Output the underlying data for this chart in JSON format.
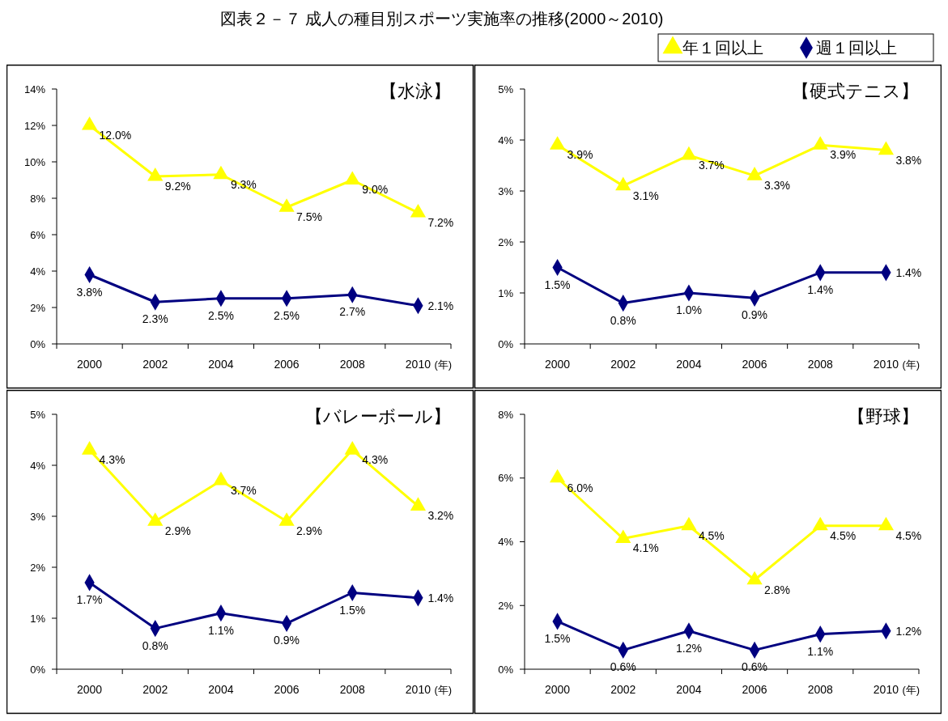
{
  "chart_data": [
    {
      "type": "line",
      "title": "【水泳】",
      "annotations": [
        "図表２－７ 成人の種目別スポーツ実施率の推移(2000～2010)"
      ],
      "xlabel": "(年)",
      "categories": [
        "2000",
        "2002",
        "2004",
        "2006",
        "2008",
        "2010"
      ],
      "ylim": [
        0,
        14
      ],
      "yticks": [
        {
          "value": 0,
          "label": "0%"
        },
        {
          "value": 2,
          "label": "2%"
        },
        {
          "value": 4,
          "label": "4%"
        },
        {
          "value": 6,
          "label": "6%"
        },
        {
          "value": 8,
          "label": "8%"
        },
        {
          "value": 10,
          "label": "10%"
        },
        {
          "value": 12,
          "label": "12%"
        },
        {
          "value": 14,
          "label": "14%"
        }
      ],
      "legend": "top right",
      "grid": false,
      "series": [
        {
          "name": "年１回以上",
          "color": "#ffff00",
          "marker": "triangle",
          "values": [
            12.0,
            9.2,
            9.3,
            7.5,
            9.0,
            7.2
          ],
          "value_labels": [
            "12.0%",
            "9.2%",
            "9.3%",
            "7.5%",
            "9.0%",
            "7.2%"
          ]
        },
        {
          "name": "週１回以上",
          "color": "#000080",
          "marker": "diamond",
          "values": [
            3.8,
            2.3,
            2.5,
            2.5,
            2.7,
            2.1
          ],
          "value_labels": [
            "3.8%",
            "2.3%",
            "2.5%",
            "2.5%",
            "2.7%",
            "2.1%"
          ]
        }
      ]
    },
    {
      "type": "line",
      "title": "【硬式テニス】",
      "xlabel": "(年)",
      "categories": [
        "2000",
        "2002",
        "2004",
        "2006",
        "2008",
        "2010"
      ],
      "ylim": [
        0,
        5
      ],
      "yticks": [
        {
          "value": 0,
          "label": "0%"
        },
        {
          "value": 1,
          "label": "1%"
        },
        {
          "value": 2,
          "label": "2%"
        },
        {
          "value": 3,
          "label": "3%"
        },
        {
          "value": 4,
          "label": "4%"
        },
        {
          "value": 5,
          "label": "5%"
        }
      ],
      "grid": false,
      "series": [
        {
          "color": "#ffff00",
          "marker": "triangle",
          "values": [
            3.9,
            3.1,
            3.7,
            3.3,
            3.9,
            3.8
          ],
          "value_labels": [
            "3.9%",
            "3.1%",
            "3.7%",
            "3.3%",
            "3.9%",
            "3.8%"
          ]
        },
        {
          "color": "#000080",
          "marker": "diamond",
          "values": [
            1.5,
            0.8,
            1.0,
            0.9,
            1.4,
            1.4
          ],
          "value_labels": [
            "1.5%",
            "0.8%",
            "1.0%",
            "0.9%",
            "1.4%",
            "1.4%"
          ]
        }
      ]
    },
    {
      "type": "line",
      "title": "【バレーボール】",
      "xlabel": "(年)",
      "categories": [
        "2000",
        "2002",
        "2004",
        "2006",
        "2008",
        "2010"
      ],
      "ylim": [
        0,
        5
      ],
      "yticks": [
        {
          "value": 0,
          "label": "0%"
        },
        {
          "value": 1,
          "label": "1%"
        },
        {
          "value": 2,
          "label": "2%"
        },
        {
          "value": 3,
          "label": "3%"
        },
        {
          "value": 4,
          "label": "4%"
        },
        {
          "value": 5,
          "label": "5%"
        }
      ],
      "grid": false,
      "series": [
        {
          "color": "#ffff00",
          "marker": "triangle",
          "values": [
            4.3,
            2.9,
            3.7,
            2.9,
            4.3,
            3.2
          ],
          "value_labels": [
            "4.3%",
            "2.9%",
            "3.7%",
            "2.9%",
            "4.3%",
            "3.2%"
          ]
        },
        {
          "color": "#000080",
          "marker": "diamond",
          "values": [
            1.7,
            0.8,
            1.1,
            0.9,
            1.5,
            1.4
          ],
          "value_labels": [
            "1.7%",
            "0.8%",
            "1.1%",
            "0.9%",
            "1.5%",
            "1.4%"
          ]
        }
      ]
    },
    {
      "type": "line",
      "title": "【野球】",
      "xlabel": "(年)",
      "categories": [
        "2000",
        "2002",
        "2004",
        "2006",
        "2008",
        "2010"
      ],
      "ylim": [
        0,
        8
      ],
      "yticks": [
        {
          "value": 0,
          "label": "0%"
        },
        {
          "value": 2,
          "label": "2%"
        },
        {
          "value": 4,
          "label": "4%"
        },
        {
          "value": 6,
          "label": "6%"
        },
        {
          "value": 8,
          "label": "8%"
        }
      ],
      "grid": false,
      "series": [
        {
          "color": "#ffff00",
          "marker": "triangle",
          "values": [
            6.0,
            4.1,
            4.5,
            2.8,
            4.5,
            4.5
          ],
          "value_labels": [
            "6.0%",
            "4.1%",
            "4.5%",
            "2.8%",
            "4.5%",
            "4.5%"
          ]
        },
        {
          "color": "#000080",
          "marker": "diamond",
          "values": [
            1.5,
            0.6,
            1.2,
            0.6,
            1.1,
            1.2
          ],
          "value_labels": [
            "1.5%",
            "0.6%",
            "1.2%",
            "0.6%",
            "1.1%",
            "1.2%"
          ]
        }
      ]
    }
  ]
}
